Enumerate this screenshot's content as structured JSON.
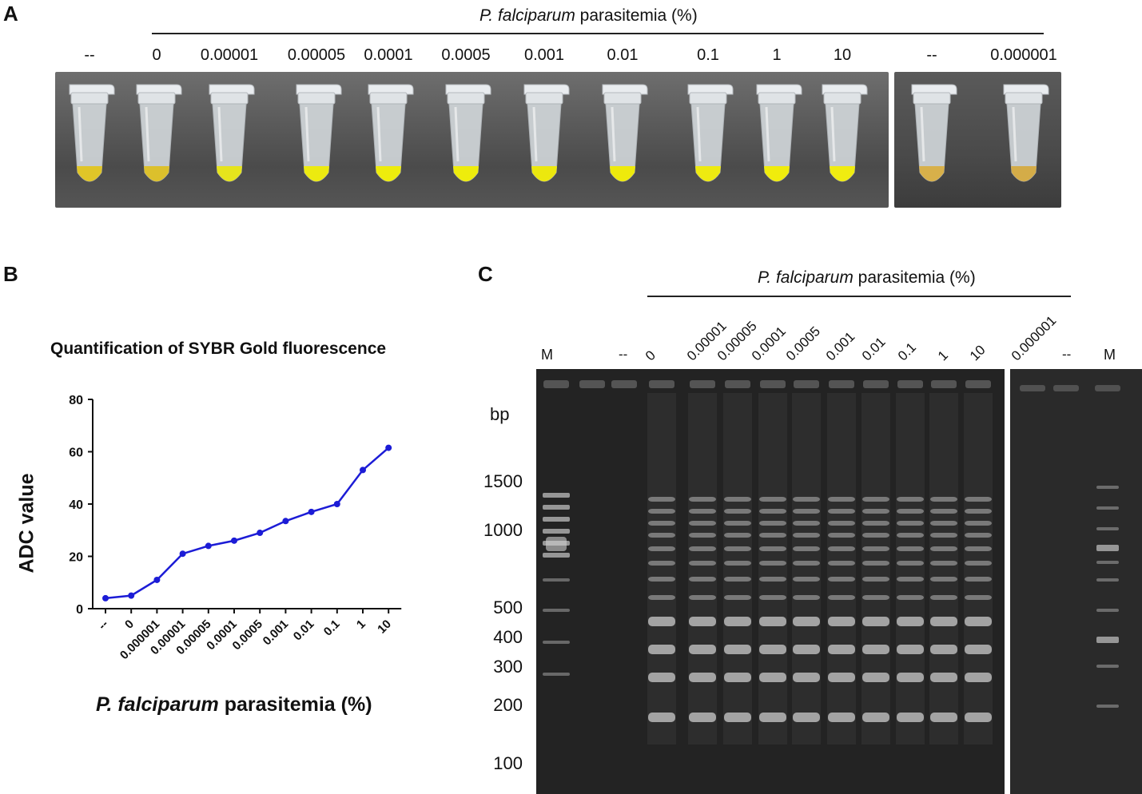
{
  "panel_a": {
    "letter": "A",
    "header_italic": "P. falciparum",
    "header_rest": " parasitemia (%)",
    "main_labels": [
      "--",
      "0",
      "0.00001",
      "0.00005",
      "0.0001",
      "0.0005",
      "0.001",
      "0.01",
      "0.1",
      "1",
      "10"
    ],
    "side_labels": [
      "--",
      "0.000001"
    ],
    "main_tube_colors": [
      "#e0c528",
      "#dcc02c",
      "#e6e41c",
      "#ecea10",
      "#eeec0c",
      "#eeec0c",
      "#ece80e",
      "#eeea0c",
      "#eeea10",
      "#f0ec0c",
      "#f0ec10"
    ],
    "side_tube_colors": [
      "#d8b04a",
      "#d4ac48"
    ]
  },
  "panel_b": {
    "letter": "B",
    "ylabel": "ADC value",
    "xlabel_italic": "P. falciparum",
    "xlabel_rest": " parasitemia (%)"
  },
  "chart_data": {
    "type": "line",
    "title": "Quantification of SYBR Gold fluorescence",
    "xlabel": "P. falciparum parasitemia (%)",
    "ylabel": "ADC value",
    "categories": [
      "--",
      "0",
      "0.000001",
      "0.00001",
      "0.00005",
      "0.0001",
      "0.0005",
      "0.001",
      "0.01",
      "0.1",
      "1",
      "10"
    ],
    "values": [
      4,
      5,
      11,
      21,
      24,
      26,
      29,
      33.5,
      37,
      40,
      53,
      61.5
    ],
    "yticks": [
      0,
      20,
      40,
      60,
      80
    ],
    "ylim": [
      0,
      80
    ],
    "color": "#1c1cd6"
  },
  "panel_c": {
    "letter": "C",
    "header_italic": "P. falciparum",
    "header_rest": " parasitemia (%)",
    "bp_unit": "bp",
    "bp_labels": [
      "1500",
      "1000",
      "500",
      "400",
      "300",
      "200",
      "100"
    ],
    "lane_labels": [
      "M",
      "--",
      "0",
      "0.00001",
      "0.00005",
      "0.0001",
      "0.0005",
      "0.001",
      "0.01",
      "0.1",
      "1",
      "10",
      "0.000001",
      "--",
      "M"
    ]
  }
}
